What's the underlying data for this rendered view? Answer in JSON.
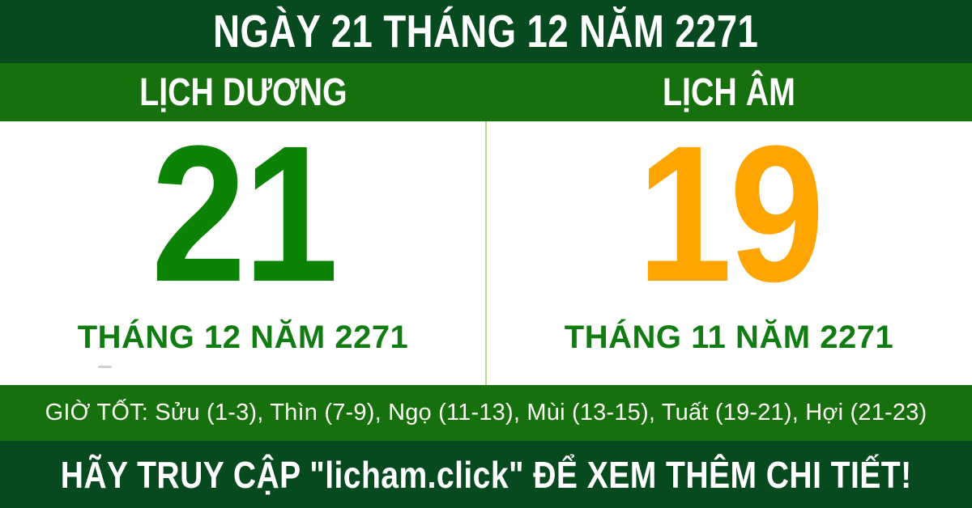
{
  "header": {
    "title": "NGÀY 21 THÁNG 12 NĂM 2271"
  },
  "columns": {
    "solar": {
      "label": "LỊCH DƯƠNG",
      "day": "21",
      "month_year": "THÁNG 12 NĂM 2271"
    },
    "lunar": {
      "label": "LỊCH ÂM",
      "day": "19",
      "month_year": "THÁNG 11 NĂM 2271"
    }
  },
  "good_hours": {
    "text": "GIỜ TỐT: Sửu (1-3), Thìn (7-9), Ngọ (11-13), Mùi (13-15), Tuất (19-21), Hợi (21-23)"
  },
  "footer": {
    "text": "HÃY TRUY CẬP \"licham.click\" ĐỂ XEM THÊM CHI TIẾT!"
  },
  "colors": {
    "dark_green_bar": "#084a20",
    "mid_green_bar": "#17700e",
    "solar_day_green": "#0d8306",
    "lunar_day_orange": "#ffa502",
    "month_text_green": "#117c11",
    "divider_light_green": "#b7dc8c",
    "text_white": "#ffffff"
  }
}
